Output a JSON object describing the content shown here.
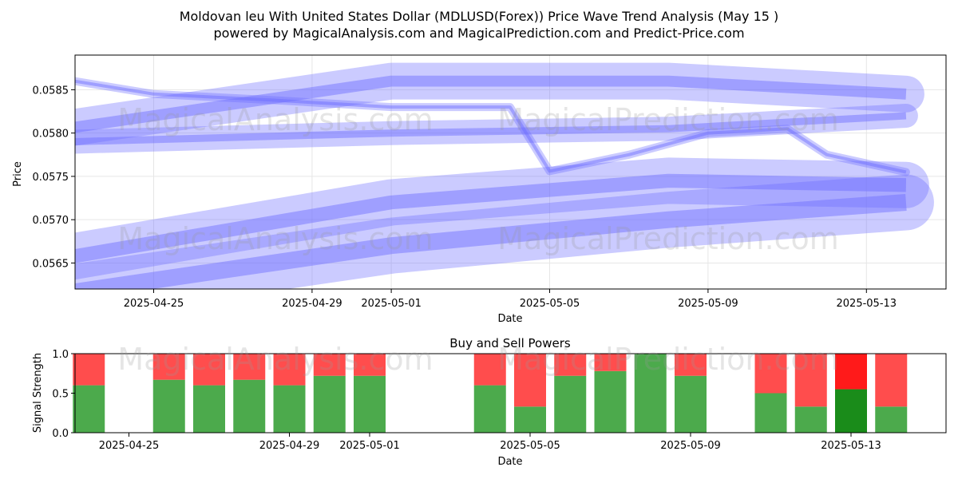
{
  "title_line1": "Moldovan leu With United States Dollar (MDLUSD(Forex)) Price Wave Trend Analysis (May 15 )",
  "title_line2": "powered by MagicalAnalysis.com and MagicalPrediction.com and Predict-Price.com",
  "watermarks": [
    "MagicalAnalysis.com",
    "MagicalPrediction.com"
  ],
  "colors": {
    "wave": "#6b6bff",
    "buy": "#4caa4c",
    "sell": "#ff4d4d",
    "buy_strong": "#1a8c1a",
    "sell_strong": "#ff1a1a"
  },
  "chart_data": [
    {
      "type": "line",
      "title": "",
      "xlabel": "Date",
      "ylabel": "Price",
      "xlim": [
        "2025-04-22",
        "2025-05-15"
      ],
      "ylim": [
        0.0562,
        0.0589
      ],
      "x_ticks": [
        "2025-04-25",
        "2025-04-29",
        "2025-05-01",
        "2025-05-05",
        "2025-05-09",
        "2025-05-13"
      ],
      "y_ticks": [
        0.0565,
        0.057,
        0.0575,
        0.058,
        0.0585
      ],
      "y_tick_labels": [
        "0.0565",
        "0.0570",
        "0.0575",
        "0.0580",
        "0.0585"
      ],
      "grid": true,
      "series": [
        {
          "name": "price-wave",
          "x": [
            "2025-04-23",
            "2025-04-25",
            "2025-04-28",
            "2025-05-01",
            "2025-05-04",
            "2025-05-05",
            "2025-05-07",
            "2025-05-09",
            "2025-05-11",
            "2025-05-12",
            "2025-05-14"
          ],
          "values": [
            0.0586,
            0.05845,
            0.05838,
            0.0583,
            0.0583,
            0.05756,
            0.05775,
            0.058,
            0.05805,
            0.05775,
            0.05755
          ]
        },
        {
          "name": "trend-upper",
          "x": [
            "2025-04-22",
            "2025-05-01",
            "2025-05-08",
            "2025-05-14"
          ],
          "values": [
            0.058,
            0.0586,
            0.0586,
            0.05845
          ]
        },
        {
          "name": "trend-middle",
          "x": [
            "2025-04-23",
            "2025-05-01",
            "2025-05-08",
            "2025-05-14"
          ],
          "values": [
            0.0579,
            0.058,
            0.05805,
            0.0582
          ]
        },
        {
          "name": "trend-lower",
          "x": [
            "2025-04-22",
            "2025-05-01",
            "2025-05-08",
            "2025-05-14"
          ],
          "values": [
            0.0565,
            0.0572,
            0.05745,
            0.0574
          ]
        },
        {
          "name": "trend-bottom",
          "x": [
            "2025-04-22",
            "2025-05-01",
            "2025-05-08",
            "2025-05-14"
          ],
          "values": [
            0.0561,
            0.0567,
            0.057,
            0.0572
          ]
        }
      ]
    },
    {
      "type": "bar",
      "title": "Buy and Sell Powers",
      "xlabel": "Date",
      "ylabel": "Signal Strength",
      "ylim": [
        0.0,
        1.0
      ],
      "y_ticks": [
        0.0,
        0.5,
        1.0
      ],
      "y_tick_labels": [
        "0.0",
        "0.5",
        "1.0"
      ],
      "x_ticks": [
        "2025-04-25",
        "2025-04-29",
        "2025-05-01",
        "2025-05-05",
        "2025-05-09",
        "2025-05-13"
      ],
      "categories": [
        "2025-04-24",
        "2025-04-26",
        "2025-04-27",
        "2025-04-28",
        "2025-04-29",
        "2025-04-30",
        "2025-05-01",
        "2025-05-04",
        "2025-05-05",
        "2025-05-06",
        "2025-05-07",
        "2025-05-08",
        "2025-05-09",
        "2025-05-11",
        "2025-05-12",
        "2025-05-13",
        "2025-05-14"
      ],
      "series": [
        {
          "name": "buy",
          "values": [
            0.6,
            0.67,
            0.6,
            0.67,
            0.6,
            0.72,
            0.72,
            0.6,
            0.33,
            0.72,
            0.78,
            1.0,
            0.72,
            0.5,
            0.33,
            0.55,
            0.33
          ]
        },
        {
          "name": "sell",
          "values": [
            0.4,
            0.33,
            0.4,
            0.33,
            0.4,
            0.28,
            0.28,
            0.4,
            0.67,
            0.28,
            0.22,
            0.0,
            0.28,
            0.5,
            0.67,
            0.45,
            0.67
          ]
        }
      ],
      "highlight_category": "2025-05-13"
    }
  ]
}
